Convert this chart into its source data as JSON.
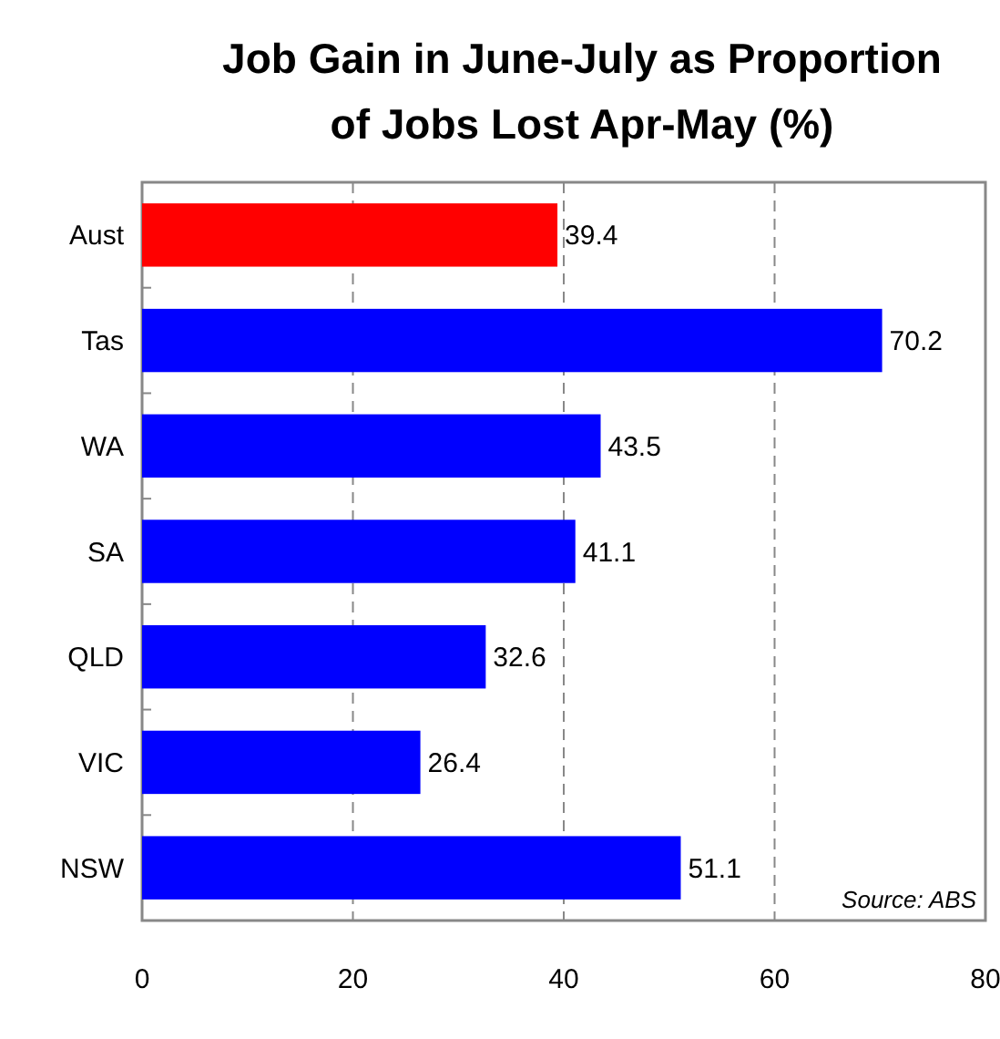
{
  "chart_data": {
    "type": "bar",
    "orientation": "horizontal",
    "title": "Job Gain in June-July as Proportion of Jobs Lost Apr-May (%)",
    "categories": [
      "Aust",
      "Tas",
      "WA",
      "SA",
      "QLD",
      "VIC",
      "NSW"
    ],
    "values": [
      39.4,
      70.2,
      43.5,
      41.1,
      32.6,
      26.4,
      51.1
    ],
    "colors": [
      "#ff0000",
      "#0000ff",
      "#0000ff",
      "#0000ff",
      "#0000ff",
      "#0000ff",
      "#0000ff"
    ],
    "xlim": [
      0,
      80
    ],
    "xticks": [
      0,
      20,
      40,
      60,
      80
    ],
    "grid": "x",
    "data_labels": true,
    "annotations": [
      "Source: ABS"
    ]
  }
}
